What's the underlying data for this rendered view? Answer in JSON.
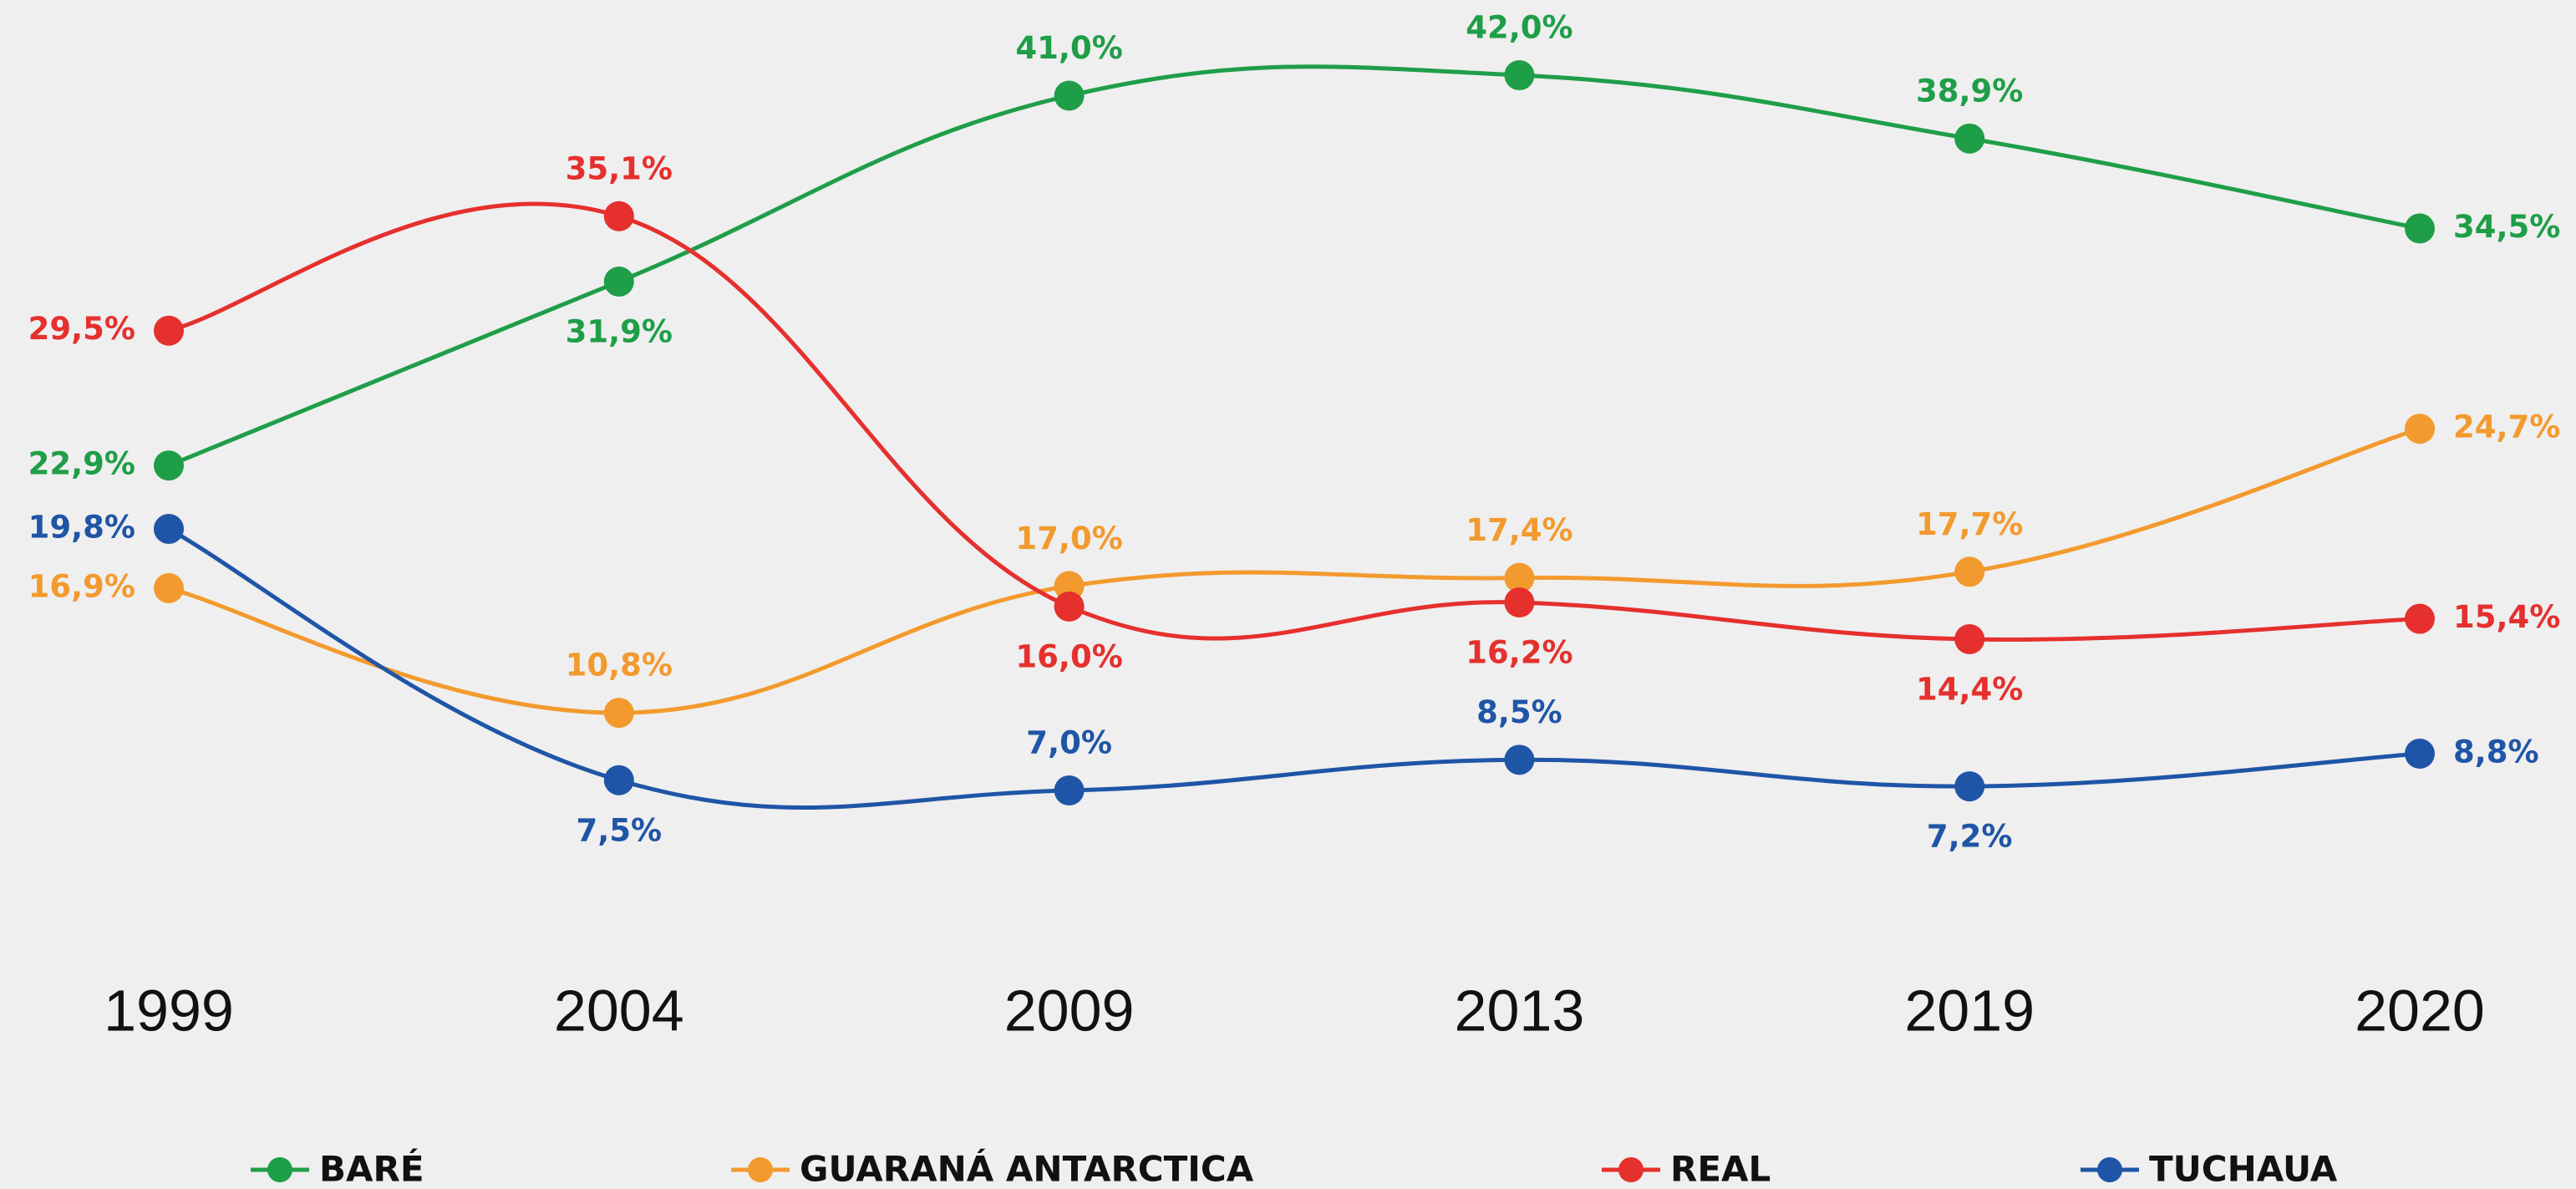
{
  "chart_data": {
    "type": "line",
    "categories": [
      "1999",
      "2004",
      "2009",
      "2013",
      "2019",
      "2020"
    ],
    "series": [
      {
        "name": "BARÉ",
        "color": "#1f9e48",
        "values": [
          22.9,
          31.9,
          41.0,
          42.0,
          38.9,
          34.5
        ],
        "value_labels": [
          "22,9%",
          "31,9%",
          "41,0%",
          "42,0%",
          "38,9%",
          "34,5%"
        ]
      },
      {
        "name": "GUARANÁ ANTARCTICA",
        "color": "#f39a2e",
        "values": [
          16.9,
          10.8,
          17.0,
          17.4,
          17.7,
          24.7
        ],
        "value_labels": [
          "16,9%",
          "10,8%",
          "17,0%",
          "17,4%",
          "17,7%",
          "24,7%"
        ]
      },
      {
        "name": "REAL",
        "color": "#e5302d",
        "values": [
          29.5,
          35.1,
          16.0,
          16.2,
          14.4,
          15.4
        ],
        "value_labels": [
          "29,5%",
          "35,1%",
          "16,0%",
          "16,2%",
          "14,4%",
          "15,4%"
        ]
      },
      {
        "name": "TUCHAUA",
        "color": "#1f55a6",
        "values": [
          19.8,
          7.5,
          7.0,
          8.5,
          7.2,
          8.8
        ],
        "value_labels": [
          "19,8%",
          "7,5%",
          "7,0%",
          "8,5%",
          "7,2%",
          "8,8%"
        ]
      }
    ],
    "legend": "bottom"
  }
}
